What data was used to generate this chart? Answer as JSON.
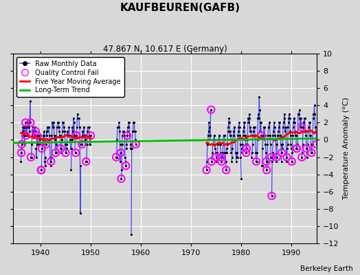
{
  "title": "KAUFBEUREN(GAFB)",
  "subtitle": "47.867 N, 10.617 E (Germany)",
  "ylabel": "Temperature Anomaly (°C)",
  "credit": "Berkeley Earth",
  "xlim": [
    1934.5,
    1995.0
  ],
  "ylim": [
    -12,
    10
  ],
  "yticks": [
    -12,
    -10,
    -8,
    -6,
    -4,
    -2,
    0,
    2,
    4,
    6,
    8,
    10
  ],
  "xticks": [
    1940,
    1950,
    1960,
    1970,
    1980,
    1990
  ],
  "bg_color": "#d8d8d8",
  "plot_bg_color": "#d8d8d8",
  "raw_color": "#4444ff",
  "qc_color": "#ff00ff",
  "ma_color": "#ff0000",
  "trend_color": "#00bb00",
  "raw_data_by_year": {
    "1936": [
      -2.5,
      -1.5,
      -0.5,
      0.5,
      1.0,
      1.5,
      1.0,
      1.5,
      0.5,
      -0.5,
      1.5,
      2.0
    ],
    "1937": [
      0.5,
      1.5,
      0.5,
      2.0,
      1.5,
      1.5,
      1.5,
      1.5,
      1.0,
      2.0,
      4.5,
      2.0
    ],
    "1938": [
      -2.0,
      -2.0,
      -0.5,
      1.0,
      0.5,
      1.5,
      1.5,
      1.5,
      0.5,
      0.5,
      1.5,
      1.0
    ],
    "1939": [
      -1.0,
      -2.0,
      -0.5,
      0.5,
      -0.5,
      0.5,
      0.5,
      0.5,
      0.5,
      -0.5,
      0.0,
      0.5
    ],
    "1940": [
      -3.5,
      -3.5,
      -1.0,
      -0.5,
      -0.5,
      0.5,
      0.0,
      1.0,
      0.5,
      -2.5,
      -3.0,
      -2.0
    ],
    "1941": [
      -0.5,
      1.0,
      0.5,
      1.5,
      1.0,
      1.5,
      1.5,
      1.5,
      0.5,
      0.0,
      -2.0,
      -3.0
    ],
    "1942": [
      -2.5,
      -2.0,
      0.5,
      2.0,
      1.5,
      1.5,
      2.0,
      1.5,
      0.5,
      0.5,
      0.0,
      -1.5
    ],
    "1943": [
      -1.5,
      -0.5,
      1.5,
      1.5,
      2.0,
      2.0,
      2.0,
      1.5,
      1.0,
      0.5,
      0.5,
      -1.0
    ],
    "1944": [
      -1.5,
      -1.0,
      0.0,
      1.0,
      2.0,
      2.0,
      2.0,
      1.5,
      1.0,
      0.5,
      -0.5,
      -1.5
    ],
    "1945": [
      -1.5,
      -1.0,
      -0.5,
      1.0,
      0.5,
      0.5,
      0.5,
      1.5,
      0.5,
      0.5,
      0.0,
      -1.0
    ],
    "1946": [
      -3.5,
      -1.0,
      0.0,
      1.5,
      1.0,
      1.0,
      2.5,
      2.0,
      0.5,
      0.5,
      -1.5,
      -1.5
    ],
    "1947": [
      0.5,
      0.5,
      1.5,
      3.0,
      2.5,
      2.5,
      2.5,
      2.5,
      1.5,
      1.5,
      -8.5,
      -3.0
    ],
    "1948": [
      -0.5,
      -0.5,
      -0.5,
      1.0,
      0.5,
      0.5,
      1.5,
      1.5,
      0.5,
      0.0,
      -0.5,
      0.5
    ],
    "1949": [
      -2.5,
      -2.5,
      -0.5,
      1.0,
      1.5,
      1.5,
      1.5,
      1.5,
      0.5,
      -0.5,
      -0.5,
      0.5
    ],
    "1955": [
      -2.0,
      -2.0,
      0.0,
      1.5,
      1.5,
      1.5,
      1.5,
      2.0,
      1.0,
      -0.5,
      -2.5,
      -1.5
    ],
    "1956": [
      -4.5,
      -3.5,
      -0.5,
      0.5,
      0.5,
      1.0,
      1.0,
      0.5,
      0.5,
      -2.0,
      -2.5,
      -3.0
    ],
    "1957": [
      -1.0,
      -0.5,
      0.5,
      1.0,
      1.5,
      1.5,
      2.0,
      2.0,
      0.5,
      0.5,
      -0.5,
      -1.0
    ],
    "1958": [
      -11.0,
      -1.0,
      -0.5,
      1.0,
      1.0,
      2.0,
      2.0,
      2.0,
      1.0,
      1.0,
      0.0,
      -0.5
    ],
    "1973": [
      -3.5,
      -2.5,
      -0.5,
      -0.5,
      0.5,
      1.0,
      2.0,
      1.5,
      0.0,
      0.5,
      3.5,
      3.5
    ],
    "1974": [
      -2.5,
      -2.0,
      -1.5,
      -0.5,
      -0.5,
      0.0,
      0.5,
      0.5,
      -0.5,
      -1.0,
      -1.5,
      -2.0
    ],
    "1975": [
      -2.5,
      -2.0,
      -1.5,
      -0.5,
      0.0,
      0.0,
      0.5,
      0.5,
      -0.5,
      -0.5,
      -1.5,
      -2.0
    ],
    "1976": [
      -2.5,
      -1.5,
      -2.0,
      -1.5,
      0.0,
      0.5,
      0.5,
      0.5,
      -1.5,
      -1.5,
      -2.5,
      -3.5
    ],
    "1977": [
      -1.5,
      -1.0,
      -0.5,
      1.0,
      1.5,
      2.0,
      2.5,
      2.0,
      0.5,
      1.0,
      0.5,
      -1.5
    ],
    "1978": [
      -2.5,
      -2.0,
      -1.0,
      0.0,
      0.5,
      1.0,
      1.5,
      1.5,
      0.0,
      0.0,
      -1.5,
      -2.5
    ],
    "1979": [
      -2.0,
      -1.5,
      -2.0,
      0.5,
      1.0,
      1.5,
      2.0,
      1.5,
      0.5,
      -0.5,
      -2.0,
      -4.5
    ],
    "1980": [
      -1.5,
      -1.0,
      -0.5,
      0.5,
      1.0,
      1.5,
      2.0,
      2.0,
      0.5,
      0.0,
      -0.5,
      -1.5
    ],
    "1981": [
      -1.0,
      -0.5,
      0.0,
      2.0,
      2.5,
      2.0,
      3.0,
      2.5,
      1.0,
      1.5,
      1.0,
      0.5
    ],
    "1982": [
      -2.0,
      -1.5,
      -0.5,
      0.5,
      1.0,
      1.5,
      1.5,
      1.5,
      0.5,
      0.5,
      -1.5,
      -2.5
    ],
    "1983": [
      -2.5,
      -1.5,
      0.0,
      2.5,
      3.0,
      2.5,
      5.0,
      3.5,
      1.0,
      2.0,
      2.0,
      0.5
    ],
    "1984": [
      -3.0,
      -3.0,
      -1.0,
      0.5,
      0.5,
      1.5,
      1.5,
      1.5,
      0.5,
      -0.5,
      -1.5,
      -2.5
    ],
    "1985": [
      -3.5,
      -2.5,
      -0.5,
      0.5,
      1.5,
      1.5,
      2.0,
      2.0,
      0.5,
      -0.5,
      -2.0,
      -2.0
    ],
    "1986": [
      -6.5,
      -2.5,
      -1.5,
      0.5,
      1.0,
      1.5,
      2.0,
      1.5,
      0.5,
      0.0,
      -0.5,
      -2.5
    ],
    "1987": [
      -2.0,
      -0.5,
      0.5,
      0.5,
      1.0,
      1.5,
      2.0,
      2.0,
      0.5,
      0.5,
      -0.5,
      -2.5
    ],
    "1988": [
      -1.5,
      -0.5,
      -1.0,
      1.5,
      2.0,
      2.0,
      3.0,
      2.5,
      1.0,
      1.5,
      1.5,
      -2.5
    ],
    "1989": [
      -2.0,
      -1.0,
      -0.5,
      1.5,
      2.0,
      2.5,
      3.0,
      2.5,
      1.0,
      0.5,
      -0.5,
      -1.0
    ],
    "1990": [
      -2.5,
      -1.5,
      0.5,
      1.5,
      2.0,
      2.5,
      2.5,
      2.0,
      0.5,
      1.0,
      0.5,
      -1.0
    ],
    "1991": [
      -1.0,
      -0.5,
      -0.5,
      3.0,
      3.0,
      3.0,
      3.5,
      2.5,
      1.5,
      2.5,
      2.5,
      1.5
    ],
    "1992": [
      -2.0,
      -1.5,
      -0.5,
      1.5,
      2.0,
      2.0,
      2.5,
      2.5,
      1.0,
      1.0,
      0.5,
      -1.0
    ],
    "1993": [
      -2.0,
      -1.5,
      -0.5,
      1.0,
      1.5,
      1.5,
      2.0,
      2.0,
      0.5,
      0.5,
      -0.5,
      -1.5
    ],
    "1994": [
      -1.5,
      -0.5,
      -0.5,
      2.5,
      3.0,
      3.0,
      4.0,
      3.0,
      1.5,
      1.5,
      1.0,
      -0.5
    ]
  },
  "qc_years": [
    1936,
    1936,
    1936,
    1937,
    1937,
    1938,
    1938,
    1939,
    1940,
    1940,
    1940,
    1941,
    1942,
    1942,
    1943,
    1944,
    1946,
    1947,
    1947,
    1948,
    1949,
    1949,
    1955,
    1955,
    1956,
    1956,
    1957,
    1958,
    1973,
    1973,
    1974,
    1974,
    1975,
    1976,
    1976,
    1980,
    1981,
    1982,
    1983,
    1984,
    1985,
    1985,
    1986,
    1987,
    1988,
    1989,
    1990,
    1990,
    1991,
    1991,
    1992,
    1992,
    1993,
    1994
  ],
  "qc_months": [
    2,
    3,
    12,
    1,
    12,
    1,
    12,
    4,
    1,
    2,
    3,
    1,
    1,
    12,
    12,
    12,
    12,
    1,
    2,
    3,
    1,
    12,
    1,
    12,
    1,
    12,
    3,
    12,
    1,
    12,
    1,
    12,
    12,
    1,
    12,
    12,
    1,
    12,
    12,
    12,
    1,
    12,
    1,
    1,
    1,
    1,
    1,
    12,
    1,
    12,
    1,
    12,
    12,
    12
  ],
  "trend_x": [
    1934.5,
    1995.0
  ],
  "trend_y": [
    -0.35,
    0.15
  ]
}
